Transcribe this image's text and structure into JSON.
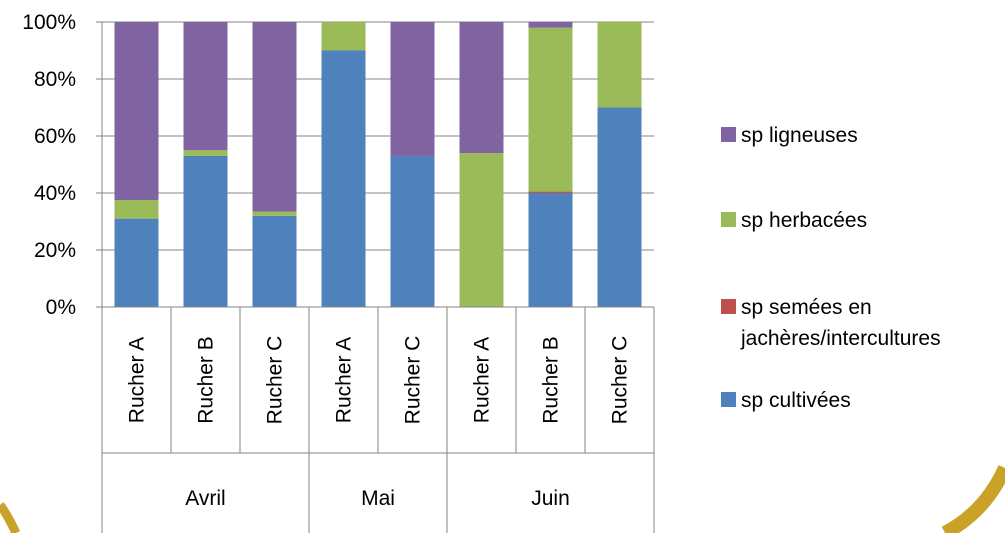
{
  "chart_data": {
    "type": "bar",
    "stacked": "percent",
    "title": "",
    "xlabel": "",
    "ylabel": "",
    "ylim": [
      0,
      100
    ],
    "yticks": [
      "0%",
      "20%",
      "40%",
      "60%",
      "80%",
      "100%"
    ],
    "grid": true,
    "legend_position": "right",
    "categories": [
      "Rucher A",
      "Rucher B",
      "Rucher C",
      "Rucher A",
      "Rucher C",
      "Rucher A",
      "Rucher B",
      "Rucher C"
    ],
    "groups": [
      {
        "label": "Avril",
        "count": 3
      },
      {
        "label": "Mai",
        "count": 2
      },
      {
        "label": "Juin",
        "count": 3
      }
    ],
    "series": [
      {
        "name": "sp cultivées",
        "color": "#4F81BD",
        "values": [
          31,
          53,
          32,
          90,
          53,
          0,
          40,
          70
        ]
      },
      {
        "name": "sp semées en jachères/intercultures",
        "color": "#C0504D",
        "values": [
          0,
          0,
          0,
          0,
          0,
          0,
          0.5,
          0
        ]
      },
      {
        "name": "sp herbacées",
        "color": "#9BBB59",
        "values": [
          6.5,
          2,
          1.5,
          10,
          0,
          54,
          57.5,
          30
        ]
      },
      {
        "name": "sp ligneuses",
        "color": "#8064A2",
        "values": [
          62.5,
          45,
          66.5,
          0,
          47,
          46,
          2,
          0
        ]
      }
    ],
    "legend": [
      {
        "label": "sp ligneuses",
        "color": "#8064A2"
      },
      {
        "label": "sp herbacées",
        "color": "#9BBB59"
      },
      {
        "label": "sp semées en",
        "label2": "jachères/intercultures",
        "color": "#C0504D"
      },
      {
        "label": "sp cultivées",
        "color": "#4F81BD"
      }
    ],
    "frame_color": "#C9A227"
  }
}
